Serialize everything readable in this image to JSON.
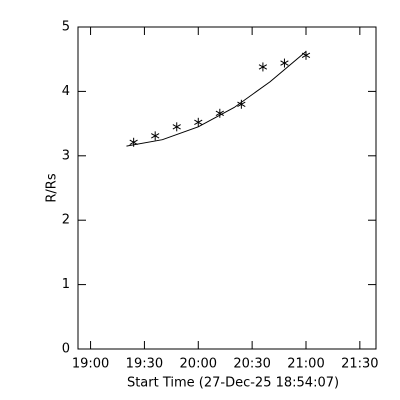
{
  "chart_data": {
    "type": "scatter",
    "xlabel": "Start Time (27-Dec-25 18:54:07)",
    "ylabel": "R/Rs",
    "xlim": [
      "18:53",
      "21:39"
    ],
    "xticks": [
      "19:00",
      "19:30",
      "20:00",
      "20:30",
      "21:00",
      "21:30"
    ],
    "ylim": [
      0,
      5
    ],
    "yticks": [
      0,
      1,
      2,
      3,
      4,
      5
    ],
    "series": [
      {
        "kind": "asterisk",
        "color": "#000000",
        "x": [
          "19:24",
          "19:36",
          "19:48",
          "20:00",
          "20:12",
          "20:24",
          "20:36",
          "20:48",
          "21:00"
        ],
        "values": [
          3.21,
          3.31,
          3.45,
          3.52,
          3.66,
          3.8,
          4.38,
          4.44,
          4.56
        ]
      },
      {
        "kind": "line",
        "color": "#000000",
        "x": [
          "19:20",
          "19:40",
          "20:00",
          "20:20",
          "20:40",
          "21:00"
        ],
        "values": [
          3.15,
          3.25,
          3.45,
          3.75,
          4.15,
          4.62
        ]
      }
    ]
  }
}
